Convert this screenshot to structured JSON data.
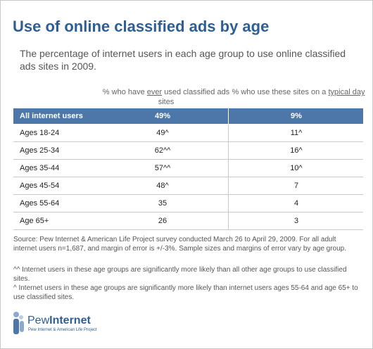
{
  "header": {
    "title": "Use of online classified ads by age",
    "subtitle": "The percentage of internet users in each age group to use online classified ads sites in 2009."
  },
  "table": {
    "columns": [
      [
        "% who have ",
        "ever",
        " used classified ads sites"
      ],
      [
        "% who use these sites on a ",
        "typical day",
        ""
      ]
    ],
    "rows": [
      [
        "All internet users",
        "49%",
        "9%"
      ],
      [
        "Ages 18-24",
        "49^",
        "11^"
      ],
      [
        "Ages 25-34",
        "62^^",
        "16^"
      ],
      [
        "Ages 35-44",
        "57^^",
        "10^"
      ],
      [
        "Ages 45-54",
        "48^",
        "7"
      ],
      [
        "Ages 55-64",
        "35",
        "4"
      ],
      [
        "Age 65+",
        "26",
        "3"
      ]
    ]
  },
  "notes": {
    "source": "Source: Pew Internet & American Life Project survey conducted March 26 to April 29, 2009. For all adult internet users n=1,687, and margin of error is +/-3%. Sample sizes and margins of error vary by age group.",
    "footnotes": [
      "^^ Internet users in these age groups are significantly more likely than all other age groups to use classified sites.",
      "^ Internet users in these age groups are significantly more likely than internet users ages 55-64 and age 65+ to use classified sites."
    ]
  },
  "logo": {
    "name": [
      "Pew",
      "Internet"
    ],
    "tagline": "Pew Internet & American Life Project"
  }
}
